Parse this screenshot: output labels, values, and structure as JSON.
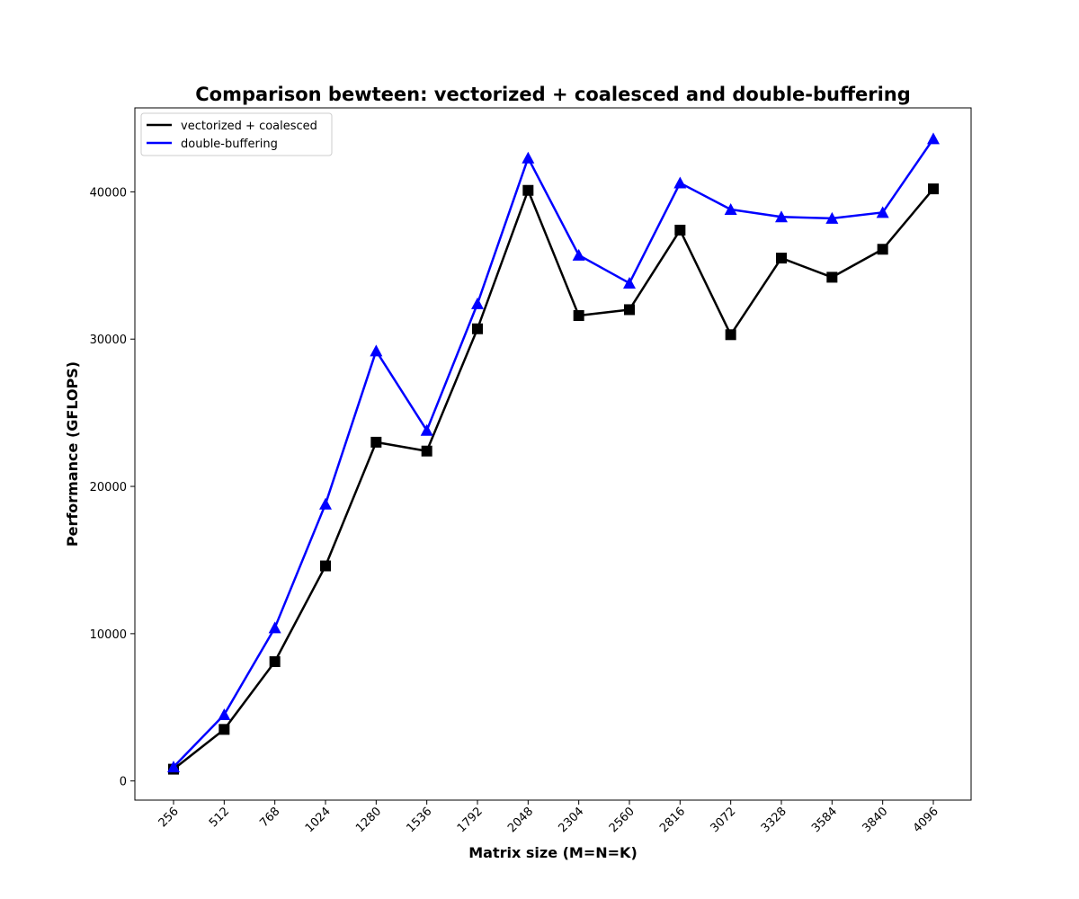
{
  "chart_data": {
    "type": "line",
    "title": "Comparison bewteen: vectorized + coalesced and double-buffering",
    "xlabel": "Matrix size (M=N=K)",
    "ylabel": "Performance (GFLOPS)",
    "categories": [
      "256",
      "512",
      "768",
      "1024",
      "1280",
      "1536",
      "1792",
      "2048",
      "2304",
      "2560",
      "2816",
      "3072",
      "3328",
      "3584",
      "3840",
      "4096"
    ],
    "yticks": [
      "0",
      "10000",
      "20000",
      "30000",
      "40000"
    ],
    "ylim": [
      -1300,
      45700
    ],
    "grid": false,
    "legend_position": "top-left",
    "series": [
      {
        "name": "vectorized + coalesced",
        "color": "#000000",
        "marker": "square",
        "values": [
          800,
          3500,
          8100,
          14600,
          23000,
          22400,
          30700,
          40100,
          31600,
          32000,
          37400,
          30300,
          35500,
          34200,
          36100,
          40200
        ]
      },
      {
        "name": "double-buffering",
        "color": "#0000ff",
        "marker": "triangle",
        "values": [
          950,
          4500,
          10400,
          18800,
          29200,
          23800,
          32400,
          42300,
          35700,
          33800,
          40600,
          38800,
          38300,
          38200,
          38600,
          43600
        ]
      }
    ]
  }
}
